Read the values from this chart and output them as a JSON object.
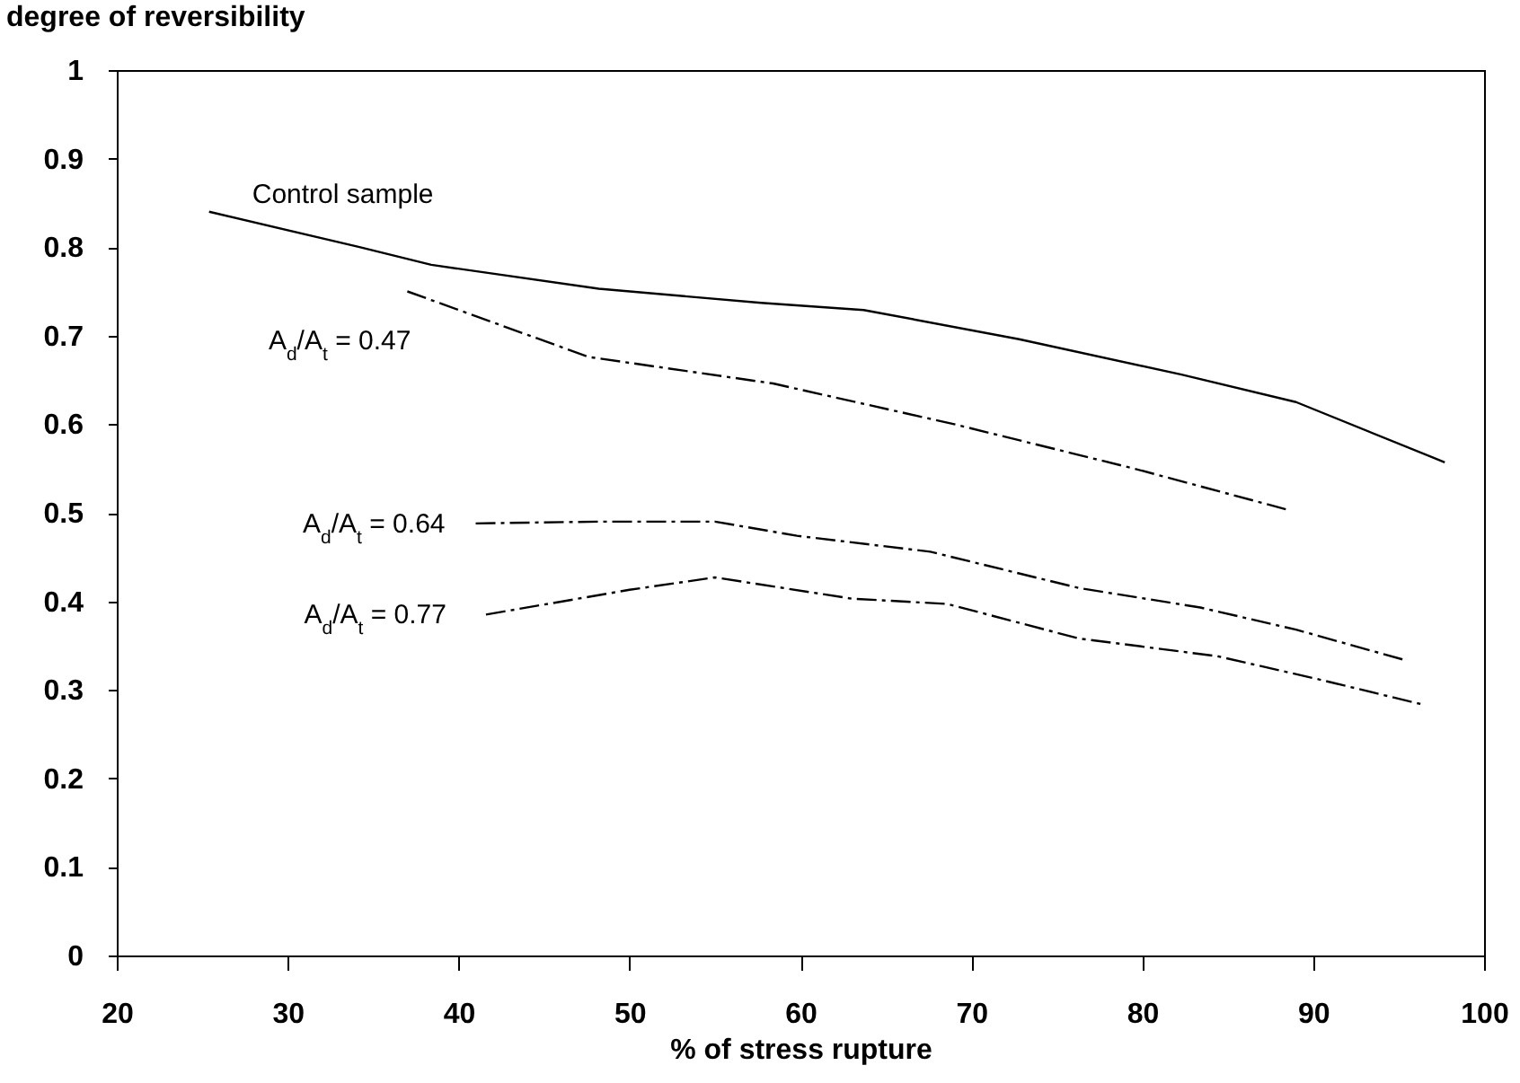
{
  "chart_data": {
    "type": "line",
    "xlabel": "% of stress rupture",
    "ylabel": "degree of reversibility",
    "xlim": [
      20,
      100
    ],
    "ylim": [
      0,
      1
    ],
    "xticks": [
      20,
      30,
      40,
      50,
      60,
      70,
      80,
      90,
      100
    ],
    "yticks": [
      0,
      0.1,
      0.2,
      0.3,
      0.4,
      0.5,
      0.6,
      0.7,
      0.8,
      0.9,
      1
    ],
    "grid": false,
    "legend": false,
    "series": [
      {
        "name": "Control sample",
        "color": "#000000",
        "line_style": "solid",
        "x": [
          25.4,
          34.2,
          38.4,
          48.2,
          57.7,
          63.7,
          72.8,
          82.3,
          89,
          97.7
        ],
        "values": [
          0.84,
          0.8,
          0.78,
          0.753,
          0.737,
          0.729,
          0.696,
          0.656,
          0.625,
          0.557
        ]
      },
      {
        "name": "A$_{d}$/A$_{t}$ = 0.47",
        "color": "#000000",
        "line_style": "dashed",
        "x": [
          37,
          47.6,
          58.4,
          69,
          79.5,
          88.4
        ],
        "values": [
          0.75,
          0.676,
          0.646,
          0.6,
          0.55,
          0.504
        ]
      },
      {
        "name": "A$_{d}$/A$_{t}$ = 0.64",
        "color": "#000000",
        "line_style": "dashed",
        "x": [
          41,
          48.2,
          55,
          59.8,
          67.6,
          76.3,
          83.4,
          89,
          95.3
        ],
        "values": [
          0.488,
          0.49,
          0.49,
          0.474,
          0.456,
          0.415,
          0.393,
          0.368,
          0.334
        ]
      },
      {
        "name": "A$_{d}$/A$_{t}$ = 0.77",
        "color": "#000000",
        "line_style": "dashed",
        "x": [
          41.6,
          50,
          55,
          63,
          68.6,
          76.3,
          84.4,
          90.3,
          96.5
        ],
        "values": [
          0.385,
          0.413,
          0.427,
          0.403,
          0.397,
          0.358,
          0.338,
          0.312,
          0.283
        ]
      }
    ]
  }
}
